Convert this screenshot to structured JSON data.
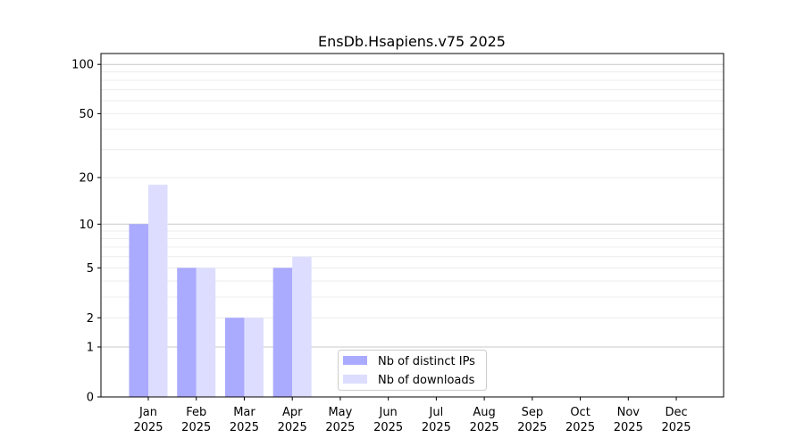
{
  "chart_data": {
    "type": "bar",
    "title": "EnsDb.Hsapiens.v75 2025",
    "xlabel": "",
    "ylabel": "",
    "yscale": "log(1+y)",
    "ylim": [
      0,
      110
    ],
    "yticks": [
      0,
      1,
      2,
      5,
      10,
      20,
      50,
      100
    ],
    "grid": true,
    "legend_position": "lower-center",
    "categories": [
      "Jan\n2025",
      "Feb\n2025",
      "Mar\n2025",
      "Apr\n2025",
      "May\n2025",
      "Jun\n2025",
      "Jul\n2025",
      "Aug\n2025",
      "Sep\n2025",
      "Oct\n2025",
      "Nov\n2025",
      "Dec\n2025"
    ],
    "series": [
      {
        "name": "Nb of distinct IPs",
        "color": "#aaaaff",
        "values": [
          10,
          5,
          2,
          5,
          0,
          0,
          0,
          0,
          0,
          0,
          0,
          0
        ]
      },
      {
        "name": "Nb of downloads",
        "color": "#ddddff",
        "values": [
          18,
          5,
          2,
          6,
          0,
          0,
          0,
          0,
          0,
          0,
          0,
          0
        ]
      }
    ]
  }
}
